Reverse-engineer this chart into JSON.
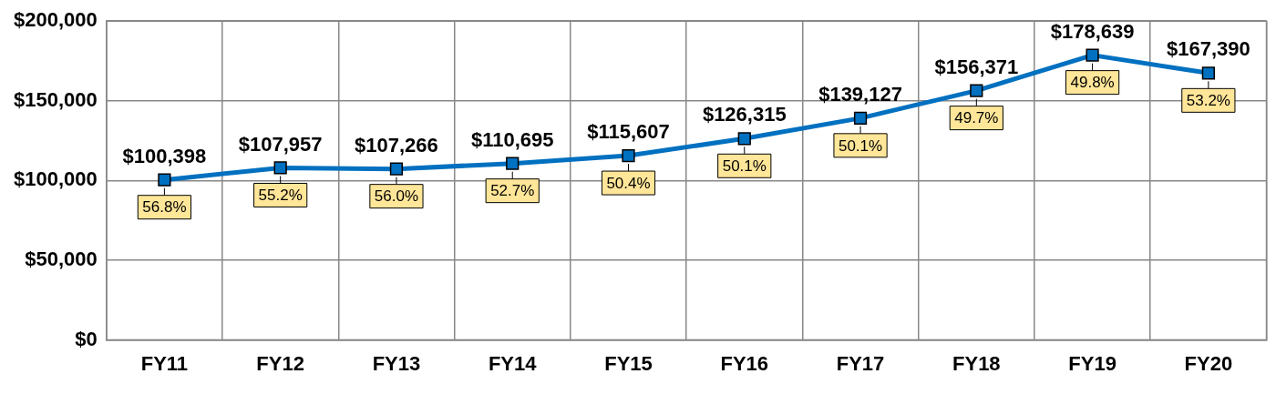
{
  "chart_data": {
    "type": "line",
    "categories": [
      "FY11",
      "FY12",
      "FY13",
      "FY14",
      "FY15",
      "FY16",
      "FY17",
      "FY18",
      "FY19",
      "FY20"
    ],
    "series": [
      {
        "color": "#0070c0",
        "values": [
          100398,
          107957,
          107266,
          110695,
          115607,
          126315,
          139127,
          156371,
          178639,
          167390
        ],
        "value_labels": [
          "$100,398",
          "$107,957",
          "$107,266",
          "$110,695",
          "$115,607",
          "$126,315",
          "$139,127",
          "$156,371",
          "$178,639",
          "$167,390"
        ]
      }
    ],
    "ylim": [
      0,
      200000
    ],
    "yticks": [
      {
        "value": 0,
        "label": "$0"
      },
      {
        "value": 50000,
        "label": "$50,000"
      },
      {
        "value": 100000,
        "label": "$100,000"
      },
      {
        "value": 150000,
        "label": "$150,000"
      },
      {
        "value": 200000,
        "label": "$200,000"
      }
    ],
    "grid": true,
    "legend": false,
    "marker": "square",
    "line_style": "solid",
    "annotations": [
      {
        "text": "56.8%",
        "x": "FY11",
        "y": 100398
      },
      {
        "text": "55.2%",
        "x": "FY12",
        "y": 107957
      },
      {
        "text": "56.0%",
        "x": "FY13",
        "y": 107266
      },
      {
        "text": "52.7%",
        "x": "FY14",
        "y": 110695
      },
      {
        "text": "50.4%",
        "x": "FY15",
        "y": 115607
      },
      {
        "text": "50.1%",
        "x": "FY16",
        "y": 126315
      },
      {
        "text": "50.1%",
        "x": "FY17",
        "y": 139127
      },
      {
        "text": "49.7%",
        "x": "FY18",
        "y": 156371
      },
      {
        "text": "49.8%",
        "x": "FY19",
        "y": 178639
      },
      {
        "text": "53.2%",
        "x": "FY20",
        "y": 167390
      }
    ]
  }
}
